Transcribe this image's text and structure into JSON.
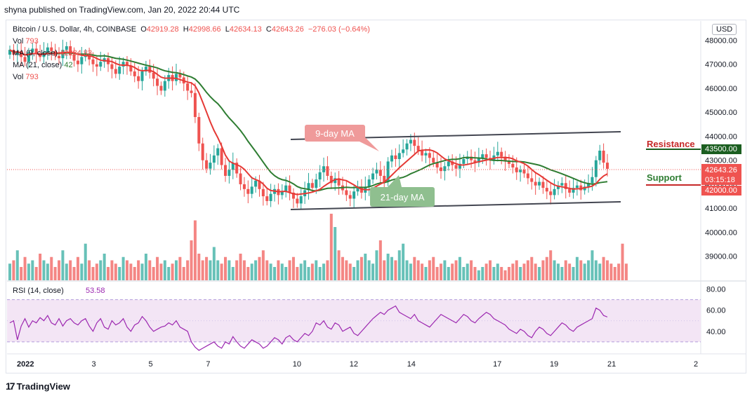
{
  "header": {
    "text": "shyna published on TradingView.com, Jan 20, 2022 20:44 UTC"
  },
  "legend": {
    "symbol": "Bitcoin / U.S. Dollar, 4h, COINBASE",
    "open_label": "O",
    "open": "42919.28",
    "high_label": "H",
    "high": "42998.66",
    "low_label": "L",
    "low": "42634.13",
    "close_label": "C",
    "close": "42643.26",
    "change": "−276.03 (−0.64%)",
    "vol_label": "Vol",
    "vol_value": "793",
    "ma9_label": "MA (9, close)",
    "ma9_value": "42284.83",
    "ma21_label": "MA (21, close)",
    "ma21_value": "42",
    "vol2_label": "Vol",
    "vol2_value": "793"
  },
  "currency_button": "USD",
  "annotations": {
    "ma9_tag": "9-day MA",
    "ma21_tag": "21-day MA",
    "resistance": "Resistance",
    "support": "Support"
  },
  "price_tags": {
    "resistance": "43500.00",
    "current": "42643.26",
    "countdown": "03:15:18",
    "support": "42000.00"
  },
  "rsi": {
    "label": "RSI (14, close)",
    "value": "53.58",
    "ticks": [
      "80.00",
      "60.00",
      "40.00"
    ]
  },
  "footer": {
    "brand": "TradingView"
  },
  "colors": {
    "up": "#26a69a",
    "down": "#ef5350",
    "ma9": "#e53935",
    "ma21": "#2e7d32",
    "rsi_line": "#9c27b0",
    "rsi_band": "#f3e5f5",
    "channel": "#434651"
  },
  "chart_data": {
    "type": "candlestick",
    "yaxis_ticks": [
      48000,
      47000,
      46000,
      45000,
      44000,
      43000,
      42000,
      41000,
      40000,
      39000
    ],
    "ylim": [
      38000,
      48800
    ],
    "xaxis_ticks": [
      {
        "label": "2022",
        "pos": 0.0
      },
      {
        "label": "3",
        "pos": 0.118
      },
      {
        "label": "5",
        "pos": 0.2
      },
      {
        "label": "7",
        "pos": 0.283
      },
      {
        "label": "10",
        "pos": 0.408
      },
      {
        "label": "12",
        "pos": 0.49
      },
      {
        "label": "14",
        "pos": 0.573
      },
      {
        "label": "17",
        "pos": 0.697
      },
      {
        "label": "19",
        "pos": 0.779
      },
      {
        "label": "21",
        "pos": 0.862
      },
      {
        "label": "2",
        "pos": 0.98
      }
    ],
    "closes": [
      47600,
      47400,
      47550,
      47300,
      47100,
      47500,
      47650,
      47450,
      47300,
      47500,
      47700,
      47550,
      47350,
      47250,
      47600,
      47750,
      47400,
      47150,
      47000,
      47300,
      47450,
      47200,
      47000,
      46900,
      47100,
      47250,
      47000,
      46800,
      46600,
      46900,
      47100,
      46950,
      46700,
      46500,
      46300,
      46700,
      46900,
      46650,
      46400,
      46100,
      45900,
      46300,
      46550,
      46300,
      46600,
      46450,
      46200,
      45900,
      45800,
      44800,
      43700,
      43000,
      42650,
      42900,
      43200,
      43500,
      42800,
      42350,
      42600,
      42900,
      42450,
      42000,
      41800,
      41600,
      41900,
      42150,
      41800,
      41500,
      41300,
      41600,
      41800,
      41550,
      41700,
      41950,
      41650,
      41400,
      41200,
      41500,
      41750,
      42050,
      41850,
      42200,
      42500,
      42750,
      42350,
      42050,
      42250,
      41950,
      41750,
      41550,
      41400,
      41700,
      41850,
      41650,
      41900,
      42200,
      42450,
      42600,
      42350,
      42100,
      42950,
      43200,
      43050,
      43300,
      43450,
      43700,
      43850,
      43600,
      43400,
      43200,
      43300,
      43100,
      42900,
      42700,
      42550,
      42750,
      42950,
      42800,
      42650,
      42850,
      43050,
      43150,
      43000,
      42900,
      43100,
      43250,
      43100,
      43000,
      43200,
      43350,
      43150,
      42950,
      42850,
      42700,
      42500,
      42600,
      42450,
      42250,
      42100,
      41950,
      42100,
      41850,
      41700,
      41550,
      41800,
      41950,
      42050,
      41800,
      41650,
      41850,
      41950,
      41750,
      41900,
      42050,
      42300,
      43000,
      43400,
      42900,
      42643
    ],
    "opens": [
      47400,
      47600,
      47400,
      47550,
      47300,
      47100,
      47500,
      47650,
      47450,
      47300,
      47500,
      47700,
      47550,
      47350,
      47250,
      47600,
      47750,
      47400,
      47150,
      47000,
      47300,
      47450,
      47200,
      47000,
      46900,
      47100,
      47250,
      47000,
      46800,
      46600,
      46900,
      47100,
      46950,
      46700,
      46500,
      46300,
      46700,
      46900,
      46650,
      46400,
      46100,
      45900,
      46300,
      46550,
      46300,
      46600,
      46450,
      46200,
      45900,
      45800,
      44800,
      43700,
      43000,
      42650,
      42900,
      43200,
      43500,
      42800,
      42350,
      42600,
      42900,
      42450,
      42000,
      41800,
      41600,
      41900,
      42150,
      41800,
      41500,
      41300,
      41600,
      41800,
      41550,
      41700,
      41950,
      41650,
      41400,
      41200,
      41500,
      41750,
      42050,
      41850,
      42200,
      42500,
      42750,
      42350,
      42050,
      42250,
      41950,
      41750,
      41550,
      41400,
      41700,
      41850,
      41650,
      41900,
      42200,
      42450,
      42600,
      42350,
      42100,
      42950,
      43200,
      43050,
      43300,
      43450,
      43700,
      43850,
      43600,
      43400,
      43200,
      43300,
      43100,
      42900,
      42700,
      42550,
      42750,
      42950,
      42800,
      42650,
      42850,
      43050,
      43150,
      43000,
      42900,
      43100,
      43250,
      43100,
      43000,
      43200,
      43350,
      43150,
      42950,
      42850,
      42700,
      42500,
      42600,
      42450,
      42250,
      42100,
      41950,
      42100,
      41850,
      41700,
      41550,
      41800,
      41950,
      42050,
      41800,
      41650,
      41850,
      41950,
      41750,
      41900,
      42050,
      42300,
      43000,
      43400,
      42900
    ],
    "volume_rel": [
      0.25,
      0.3,
      0.45,
      0.2,
      0.35,
      0.25,
      0.3,
      0.2,
      0.4,
      0.3,
      0.25,
      0.35,
      0.2,
      0.3,
      0.45,
      0.25,
      0.3,
      0.2,
      0.35,
      0.25,
      0.55,
      0.3,
      0.2,
      0.25,
      0.3,
      0.4,
      0.2,
      0.3,
      0.25,
      0.2,
      0.35,
      0.3,
      0.25,
      0.2,
      0.3,
      0.25,
      0.4,
      0.3,
      0.2,
      0.35,
      0.25,
      0.3,
      0.2,
      0.25,
      0.3,
      0.35,
      0.2,
      0.3,
      0.6,
      0.9,
      0.4,
      0.3,
      0.35,
      0.3,
      0.5,
      0.3,
      0.25,
      0.35,
      0.3,
      0.2,
      0.3,
      0.4,
      0.3,
      0.2,
      0.25,
      0.3,
      0.35,
      0.45,
      0.3,
      0.25,
      0.2,
      0.3,
      0.25,
      0.2,
      0.3,
      0.35,
      0.2,
      0.25,
      0.3,
      0.2,
      0.25,
      0.3,
      0.2,
      0.25,
      0.3,
      1.0,
      0.8,
      0.45,
      0.35,
      0.3,
      0.25,
      0.2,
      0.3,
      0.35,
      0.4,
      0.3,
      0.25,
      0.45,
      0.6,
      0.3,
      0.4,
      0.35,
      0.3,
      0.45,
      0.55,
      0.3,
      0.25,
      0.35,
      0.3,
      0.25,
      0.2,
      0.3,
      0.35,
      0.2,
      0.25,
      0.3,
      0.2,
      0.25,
      0.3,
      0.35,
      0.2,
      0.25,
      0.3,
      0.2,
      0.15,
      0.2,
      0.25,
      0.3,
      0.2,
      0.25,
      0.2,
      0.15,
      0.2,
      0.25,
      0.3,
      0.2,
      0.25,
      0.3,
      0.35,
      0.25,
      0.2,
      0.3,
      0.35,
      0.45,
      0.3,
      0.25,
      0.2,
      0.3,
      0.25,
      0.2,
      0.35,
      0.3,
      0.25,
      0.3,
      0.45,
      0.3,
      0.25,
      0.35,
      0.3,
      0.25,
      0.2,
      0.25,
      0.55,
      0.25
    ],
    "rsi": [
      48,
      50,
      32,
      45,
      52,
      44,
      50,
      48,
      53,
      50,
      55,
      48,
      46,
      52,
      45,
      50,
      52,
      48,
      46,
      50,
      52,
      45,
      40,
      48,
      52,
      44,
      42,
      50,
      46,
      48,
      52,
      44,
      40,
      46,
      48,
      54,
      50,
      44,
      40,
      42,
      44,
      45,
      48,
      46,
      50,
      44,
      42,
      40,
      30,
      25,
      22,
      24,
      26,
      28,
      30,
      26,
      24,
      30,
      28,
      35,
      30,
      26,
      24,
      28,
      32,
      30,
      28,
      24,
      26,
      30,
      34,
      32,
      28,
      34,
      36,
      32,
      30,
      34,
      38,
      36,
      40,
      48,
      46,
      50,
      44,
      42,
      48,
      46,
      40,
      42,
      44,
      38,
      36,
      40,
      44,
      48,
      52,
      55,
      58,
      56,
      60,
      62,
      64,
      58,
      56,
      54,
      52,
      56,
      50,
      48,
      46,
      44,
      48,
      52,
      56,
      54,
      52,
      50,
      48,
      52,
      56,
      54,
      50,
      48,
      52,
      55,
      58,
      56,
      52,
      50,
      48,
      46,
      42,
      40,
      38,
      42,
      40,
      36,
      34,
      40,
      44,
      42,
      38,
      36,
      40,
      44,
      48,
      46,
      42,
      40,
      44,
      46,
      48,
      50,
      52,
      62,
      60,
      55,
      53.58
    ]
  }
}
